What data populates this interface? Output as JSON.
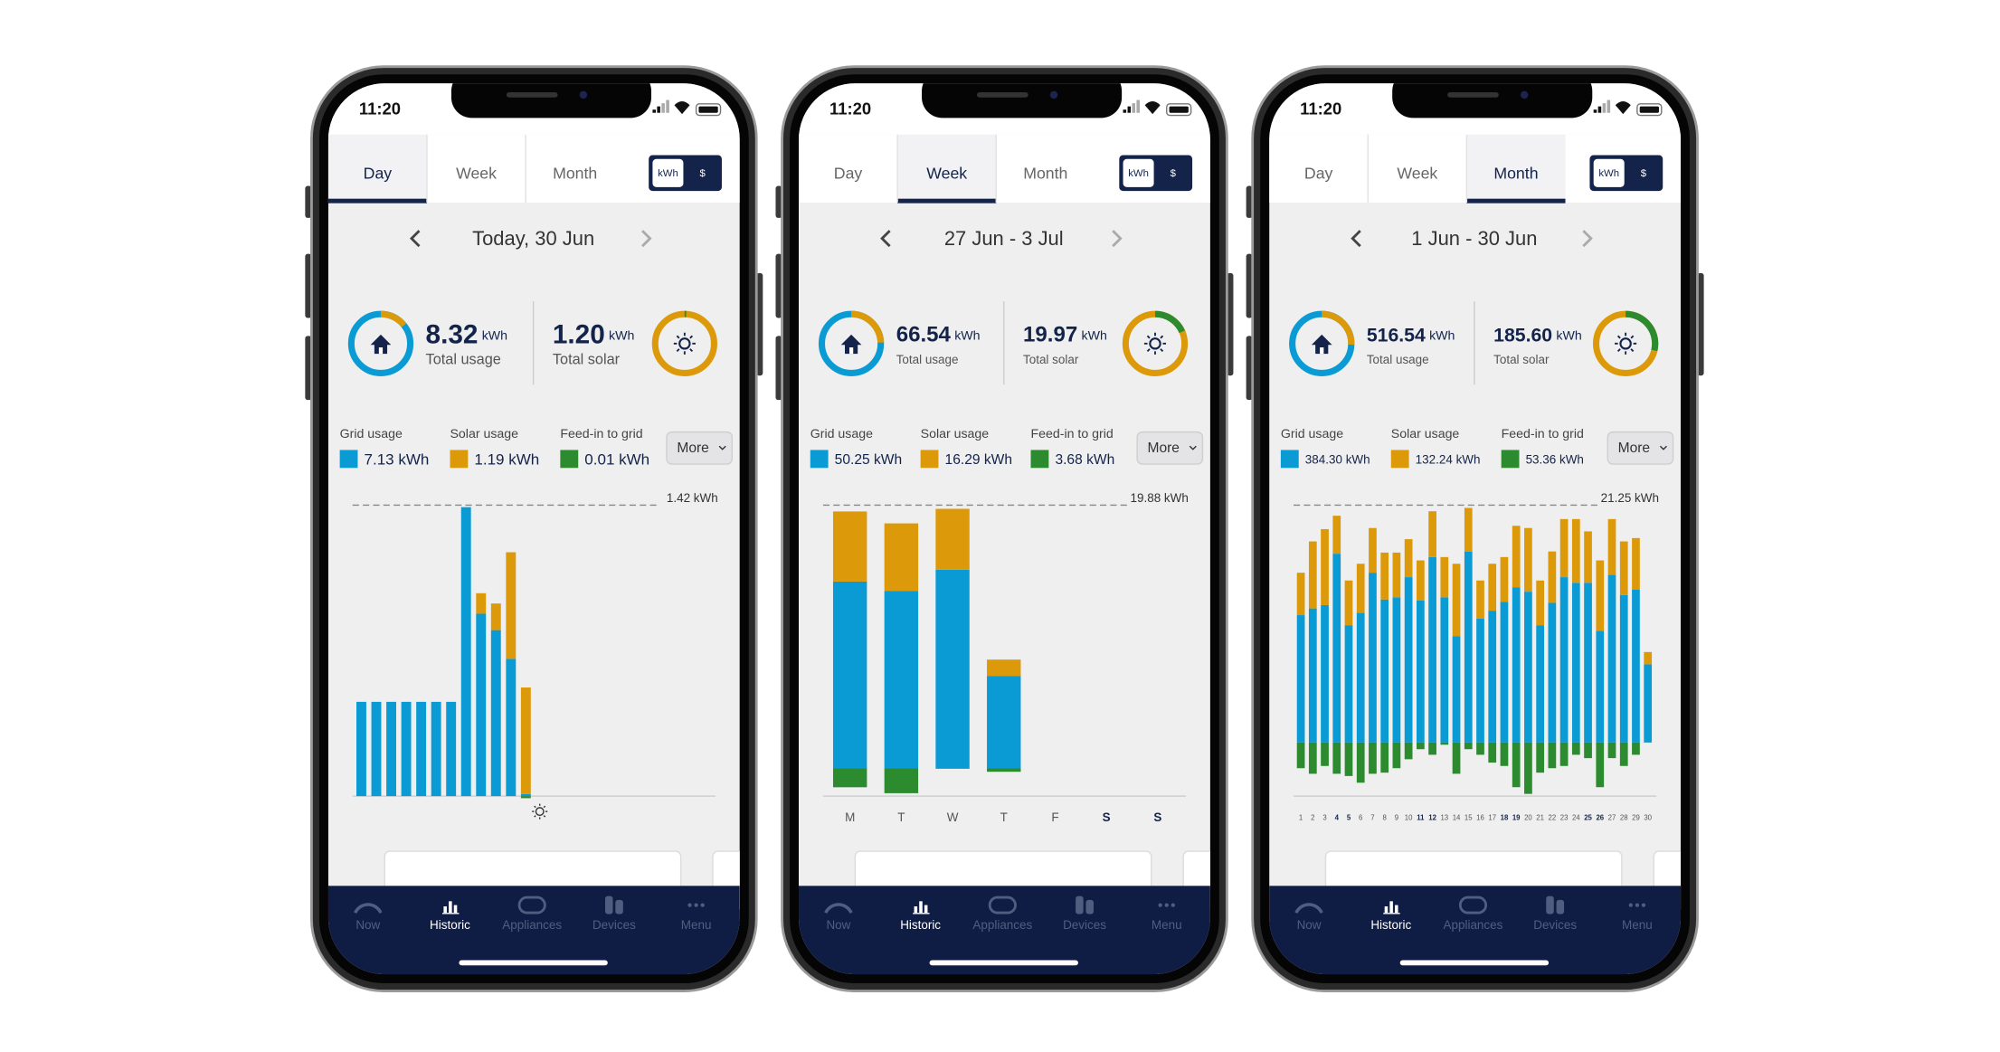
{
  "tabs": [
    "Day",
    "Week",
    "Month"
  ],
  "units": [
    "kWh",
    "$"
  ],
  "more": "More",
  "nav": [
    "Now",
    "Historic",
    "Appliances",
    "Devices",
    "Menu"
  ],
  "nav_selected": 1,
  "phones": [
    {
      "time": "11:20",
      "selected_tab": 0,
      "date": "Today, 30 Jun",
      "usage": {
        "value": "8.32",
        "unit": "kWh",
        "label": "Total usage"
      },
      "solar": {
        "value": "1.20",
        "unit": "kWh",
        "label": "Total solar"
      },
      "chart_data": {
        "type": "bar",
        "max_label": "1.42 kWh",
        "ylim": [
          0,
          1.42
        ],
        "categories": [
          null,
          null,
          null,
          null,
          null,
          null,
          null,
          null,
          null,
          null,
          null,
          null,
          null,
          null,
          null,
          null,
          null,
          null,
          null,
          null,
          null,
          null,
          null,
          null
        ],
        "series": [
          {
            "name": "Grid usage",
            "total": "7.13 kWh",
            "color": "#0a9bd5",
            "values": [
              0.46,
              0.46,
              0.46,
              0.46,
              0.46,
              0.46,
              0.46,
              1.41,
              0.89,
              0.81,
              0.67,
              0.01,
              null,
              null,
              null,
              null,
              null,
              null,
              null,
              null,
              null,
              null,
              null,
              null
            ]
          },
          {
            "name": "Solar usage",
            "total": "1.19 kWh",
            "color": "#dc9a0b",
            "values": [
              0,
              0,
              0,
              0,
              0,
              0,
              0,
              0,
              0.1,
              0.13,
              0.52,
              0.52,
              null,
              null,
              null,
              null,
              null,
              null,
              null,
              null,
              null,
              null,
              null,
              null
            ]
          },
          {
            "name": "Feed-in to grid",
            "total": "0.01 kWh",
            "color": "#2c8a2f",
            "values": [
              0,
              0,
              0,
              0,
              0,
              0,
              0,
              0,
              0,
              0,
              0,
              0.01,
              null,
              null,
              null,
              null,
              null,
              null,
              null,
              null,
              null,
              null,
              null,
              null
            ]
          }
        ]
      }
    },
    {
      "time": "11:20",
      "selected_tab": 1,
      "date": "27 Jun - 3 Jul",
      "usage": {
        "value": "66.54",
        "unit": "kWh",
        "label": "Total usage"
      },
      "solar": {
        "value": "19.97",
        "unit": "kWh",
        "label": "Total solar"
      },
      "chart_data": {
        "type": "bar",
        "max_label": "19.88 kWh",
        "ylim": [
          -2.12,
          19.88
        ],
        "categories": [
          "M",
          "T",
          "W",
          "T",
          "F",
          "S",
          "S"
        ],
        "bold_ticks": [
          5,
          6
        ],
        "series": [
          {
            "name": "Grid usage",
            "total": "50.25 kWh",
            "color": "#0a9bd5",
            "values": [
              14.1,
              13.4,
              15.0,
              6.95,
              null,
              null,
              null
            ]
          },
          {
            "name": "Solar usage",
            "total": "16.29 kWh",
            "color": "#dc9a0b",
            "values": [
              5.3,
              5.1,
              4.6,
              1.25,
              null,
              null,
              null
            ]
          },
          {
            "name": "Feed-in to grid",
            "total": "3.68 kWh",
            "color": "#2c8a2f",
            "values": [
              1.45,
              1.9,
              0.05,
              0.28,
              null,
              null,
              null
            ]
          }
        ]
      }
    },
    {
      "time": "11:20",
      "selected_tab": 2,
      "date": "1 Jun - 30 Jun",
      "usage": {
        "value": "516.54",
        "unit": "kWh",
        "label": "Total usage"
      },
      "solar": {
        "value": "185.60",
        "unit": "kWh",
        "label": "Total solar"
      },
      "chart_data": {
        "type": "bar",
        "max_label": "21.25 kWh",
        "ylim": [
          -4.8,
          21.25
        ],
        "categories": [
          "1",
          "2",
          "3",
          "4",
          "5",
          "6",
          "7",
          "8",
          "9",
          "10",
          "11",
          "12",
          "13",
          "14",
          "15",
          "16",
          "17",
          "18",
          "19",
          "20",
          "21",
          "22",
          "23",
          "24",
          "25",
          "26",
          "27",
          "28",
          "29",
          "30"
        ],
        "bold_ticks": [
          3,
          4,
          10,
          11,
          17,
          18,
          24,
          25
        ],
        "series": [
          {
            "name": "Grid usage",
            "total": "384.30 kWh",
            "color": "#0a9bd5",
            "values": [
              11.4,
              12.0,
              12.3,
              16.9,
              10.5,
              11.6,
              15.2,
              12.8,
              13.0,
              14.8,
              12.7,
              16.6,
              13.0,
              9.5,
              17.1,
              11.1,
              11.8,
              12.6,
              13.9,
              13.5,
              10.5,
              12.5,
              14.8,
              14.3,
              14.3,
              10.0,
              15.0,
              13.2,
              13.7,
              7.0
            ]
          },
          {
            "name": "Solar usage",
            "total": "132.24 kWh",
            "color": "#dc9a0b",
            "values": [
              3.8,
              6.0,
              6.8,
              3.4,
              4.0,
              4.4,
              4.0,
              4.2,
              4.0,
              3.4,
              3.6,
              4.1,
              3.6,
              6.5,
              3.9,
              3.4,
              4.2,
              4.0,
              5.5,
              5.7,
              4.0,
              4.6,
              5.2,
              5.7,
              4.6,
              6.3,
              5.0,
              4.8,
              4.6,
              1.1
            ]
          },
          {
            "name": "Feed-in to grid",
            "total": "53.36 kWh",
            "color": "#2c8a2f",
            "values": [
              2.3,
              2.8,
              2.1,
              2.8,
              3.0,
              3.6,
              2.8,
              2.7,
              2.3,
              1.5,
              0.6,
              1.1,
              0.2,
              2.8,
              0.6,
              1.1,
              1.8,
              2.1,
              4.0,
              4.6,
              2.7,
              2.3,
              2.1,
              1.1,
              1.4,
              4.0,
              1.4,
              2.1,
              1.1,
              0.01
            ]
          }
        ]
      }
    }
  ]
}
